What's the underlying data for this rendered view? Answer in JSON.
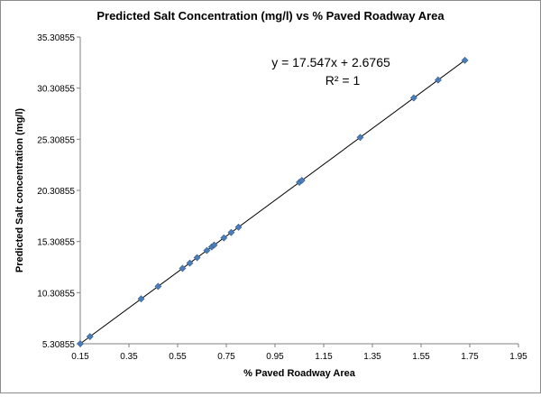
{
  "chart_data": {
    "type": "scatter",
    "title": "Predicted Salt Concentration (mg/l) vs % Paved Roadway Area",
    "xlabel": "% Paved Roadway Area",
    "ylabel": "Predicted Salt concentration (mg/l)",
    "xlim": [
      0.15,
      1.95
    ],
    "ylim": [
      5.30855,
      35.30855
    ],
    "x_ticks": [
      "0.15",
      "0.35",
      "0.55",
      "0.75",
      "0.95",
      "1.15",
      "1.35",
      "1.55",
      "1.75",
      "1.95"
    ],
    "y_ticks": [
      "5.30855",
      "10.30855",
      "15.30855",
      "20.30855",
      "25.30855",
      "30.30855",
      "35.30855"
    ],
    "grid": false,
    "marker_color": "#4a7ebb",
    "trendline_color": "#000000",
    "trendline": {
      "slope": 17.547,
      "intercept": 2.6765,
      "equation": "y = 17.547x + 2.6765",
      "r_squared": "R² = 1"
    },
    "series": [
      {
        "x": [
          0.15,
          0.19,
          0.4,
          0.47,
          0.57,
          0.6,
          0.63,
          0.67,
          0.69,
          0.7,
          0.74,
          0.77,
          0.8,
          1.05,
          1.06,
          1.3,
          1.52,
          1.62,
          1.73
        ],
        "y": [
          5.31,
          6.01,
          9.7,
          10.92,
          12.68,
          13.2,
          13.73,
          14.43,
          14.78,
          14.96,
          15.66,
          16.19,
          16.71,
          21.1,
          21.28,
          25.49,
          29.35,
          31.1,
          33.03
        ]
      }
    ]
  }
}
